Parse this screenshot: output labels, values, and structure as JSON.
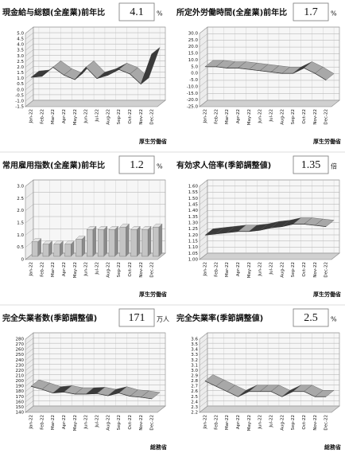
{
  "chart_data": [
    {
      "type": "line",
      "title": "現金給与総額(全産業)前年比",
      "headline": 4.1,
      "unit": "%",
      "source": "厚生労働省",
      "categories": [
        "Jan-22",
        "Feb-22",
        "Mar-22",
        "Apr-22",
        "May-22",
        "Jun-22",
        "Jul-22",
        "Aug-22",
        "Sep-22",
        "Oct-22",
        "Nov-22",
        "Dec-22"
      ],
      "values": [
        1.1,
        1.2,
        2.0,
        1.3,
        0.9,
        2.0,
        1.0,
        1.3,
        1.8,
        1.4,
        0.5,
        3.2
      ],
      "color": "#a8a8a8",
      "ylim": [
        -1.5,
        5.0
      ],
      "yticks": [
        -1.5,
        {
          "value": -1.0,
          "label": "-1.0"
        },
        -0.5,
        {
          "value": 0,
          "label": "0.0"
        },
        0.5,
        {
          "value": 1.0,
          "label": "1.0"
        },
        1.5,
        {
          "value": 2.0,
          "label": "2.0"
        },
        2.5,
        {
          "value": 3.0,
          "label": "3.0"
        },
        3.5,
        {
          "value": 4.0,
          "label": "4.0"
        },
        4.5,
        {
          "value": 5.0,
          "label": "5.0"
        }
      ]
    },
    {
      "type": "line",
      "title": "所定外労働時間(全産業)前年比",
      "headline": 1.7,
      "unit": "%",
      "source": "厚生労働省",
      "categories": [
        "Jan-22",
        "Feb-22",
        "Mar-22",
        "Apr-22",
        "May-22",
        "Jun-22",
        "Jul-22",
        "Aug-22",
        "Sep-22",
        "Oct-22",
        "Nov-22",
        "Dec-22"
      ],
      "values": [
        5,
        5,
        4,
        4,
        3,
        2,
        1,
        0,
        0,
        4,
        0,
        -5
      ],
      "color": "#a8a8a8",
      "ylim": [
        -25,
        30
      ],
      "yticks": [
        {
          "value": -25,
          "label": "-25.0"
        },
        {
          "value": -20,
          "label": "-20.0"
        },
        {
          "value": -15,
          "label": "-15.0"
        },
        {
          "value": -10,
          "label": "-10.0"
        },
        {
          "value": -5,
          "label": "-5.0"
        },
        {
          "value": 0,
          "label": "0.0"
        },
        {
          "value": 5,
          "label": "5.0"
        },
        {
          "value": 10,
          "label": "10.0"
        },
        {
          "value": 15,
          "label": "15.0"
        },
        {
          "value": 20,
          "label": "20.0"
        },
        {
          "value": 25,
          "label": "25.0"
        },
        {
          "value": 30,
          "label": "30.0"
        }
      ]
    },
    {
      "type": "bar",
      "title": "常用雇用指数(全産業)前年比",
      "headline": 1.2,
      "unit": "%",
      "source": "厚生労働省",
      "categories": [
        "Jan-22",
        "Feb-22",
        "Mar-22",
        "Apr-22",
        "May-22",
        "Jun-22",
        "Jul-22",
        "Aug-22",
        "Sep-22",
        "Oct-22",
        "Nov-22",
        "Dec-22"
      ],
      "values": [
        0.6,
        0.5,
        0.5,
        0.5,
        0.7,
        1.1,
        1.1,
        1.1,
        1.2,
        1.1,
        1.1,
        1.2
      ],
      "color": "#c4c4c4",
      "ylim": [
        0,
        3.0
      ],
      "yticks": [
        0,
        0.5,
        {
          "value": 1.0,
          "label": "1.0"
        },
        1.5,
        {
          "value": 2.0,
          "label": "2.0"
        },
        2.5,
        {
          "value": 3.0,
          "label": "3.0"
        }
      ]
    },
    {
      "type": "line",
      "title": "有効求人倍率(季節調整値)",
      "headline": 1.35,
      "unit": "倍",
      "source": "厚生労働省",
      "categories": [
        "Jan-22",
        "Feb-22",
        "Mar-22",
        "Apr-22",
        "May-22",
        "Jun-22",
        "Jul-22",
        "Aug-22",
        "Sep-22",
        "Oct-22",
        "Nov-22",
        "Dec-22"
      ],
      "values": [
        1.2,
        1.21,
        1.22,
        1.23,
        1.23,
        1.24,
        1.26,
        1.27,
        1.29,
        1.29,
        1.28,
        1.27
      ],
      "color": "#a8a8a8",
      "ylim": [
        1.0,
        1.6
      ],
      "yticks": [
        {
          "value": 1.0,
          "label": "1.00"
        },
        1.05,
        {
          "value": 1.1,
          "label": "1.10"
        },
        1.15,
        {
          "value": 1.2,
          "label": "1.20"
        },
        1.25,
        {
          "value": 1.3,
          "label": "1.30"
        },
        1.35,
        {
          "value": 1.4,
          "label": "1.40"
        },
        1.45,
        {
          "value": 1.5,
          "label": "1.50"
        },
        1.55,
        {
          "value": 1.6,
          "label": "1.60"
        }
      ]
    },
    {
      "type": "line",
      "title": "完全失業者数(季節調整値)",
      "headline": 171,
      "unit": "万人",
      "source": "総務省",
      "categories": [
        "Jan-22",
        "Feb-22",
        "Mar-22",
        "Apr-22",
        "May-22",
        "Jun-22",
        "Jul-22",
        "Aug-22",
        "Sep-22",
        "Oct-22",
        "Nov-22",
        "Dec-22"
      ],
      "values": [
        190,
        184,
        177,
        179,
        175,
        175,
        176,
        172,
        177,
        171,
        169,
        166
      ],
      "color": "#a8a8a8",
      "ylim": [
        140,
        280
      ],
      "yticks": [
        140,
        150,
        160,
        170,
        180,
        190,
        200,
        210,
        220,
        230,
        240,
        250,
        260,
        270,
        280
      ]
    },
    {
      "type": "line",
      "title": "完全失業率(季節調整値)",
      "headline": 2.5,
      "unit": "%",
      "source": "総務省",
      "categories": [
        "Jan-22",
        "Feb-22",
        "Mar-22",
        "Apr-22",
        "May-22",
        "Jun-22",
        "Jul-22",
        "Aug-22",
        "Sep-22",
        "Oct-22",
        "Nov-22",
        "Dec-22"
      ],
      "values": [
        2.8,
        2.7,
        2.6,
        2.5,
        2.6,
        2.6,
        2.6,
        2.5,
        2.6,
        2.6,
        2.5,
        2.5
      ],
      "color": "#a8a8a8",
      "ylim": [
        2.2,
        3.6
      ],
      "yticks": [
        2.2,
        2.3,
        2.4,
        2.5,
        2.6,
        2.7,
        2.8,
        2.9,
        {
          "value": 3.0,
          "label": "3.0"
        },
        3.1,
        3.2,
        3.3,
        3.4,
        3.5,
        3.6
      ]
    }
  ]
}
